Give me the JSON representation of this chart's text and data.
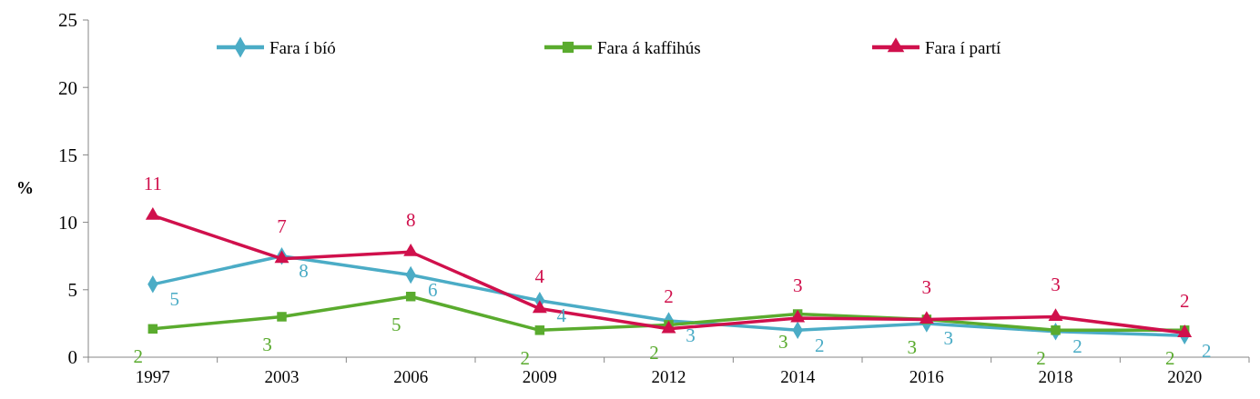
{
  "chart_data": {
    "type": "line",
    "ylabel": "%",
    "categories": [
      "1997",
      "2003",
      "2006",
      "2009",
      "2012",
      "2014",
      "2016",
      "2018",
      "2020"
    ],
    "ylim": [
      0,
      25
    ],
    "yticks": [
      0,
      5,
      10,
      15,
      20,
      25
    ],
    "grid": false,
    "legend": "top",
    "series": [
      {
        "name": "Fara í bíó",
        "color": "#4bacc6",
        "marker": "diamond",
        "values": [
          5.4,
          7.5,
          6.1,
          4.2,
          2.7,
          2.0,
          2.5,
          1.9,
          1.6
        ],
        "value_labels": [
          "5",
          "8",
          "6",
          "4",
          "3",
          "2",
          "3",
          "2",
          "2"
        ]
      },
      {
        "name": "Fara á kaffihús",
        "color": "#5aab2e",
        "marker": "square",
        "values": [
          2.1,
          3.0,
          4.5,
          2.0,
          2.4,
          3.2,
          2.8,
          2.0,
          2.0
        ],
        "value_labels": [
          "2",
          "3",
          "5",
          "2",
          "2",
          "3",
          "3",
          "2",
          "2"
        ]
      },
      {
        "name": "Fara í partí",
        "color": "#d0104c",
        "marker": "triangle",
        "values": [
          10.5,
          7.3,
          7.8,
          3.6,
          2.1,
          2.9,
          2.8,
          3.0,
          1.8
        ],
        "value_labels": [
          "11",
          "7",
          "8",
          "4",
          "2",
          "3",
          "3",
          "3",
          "2"
        ]
      }
    ]
  }
}
